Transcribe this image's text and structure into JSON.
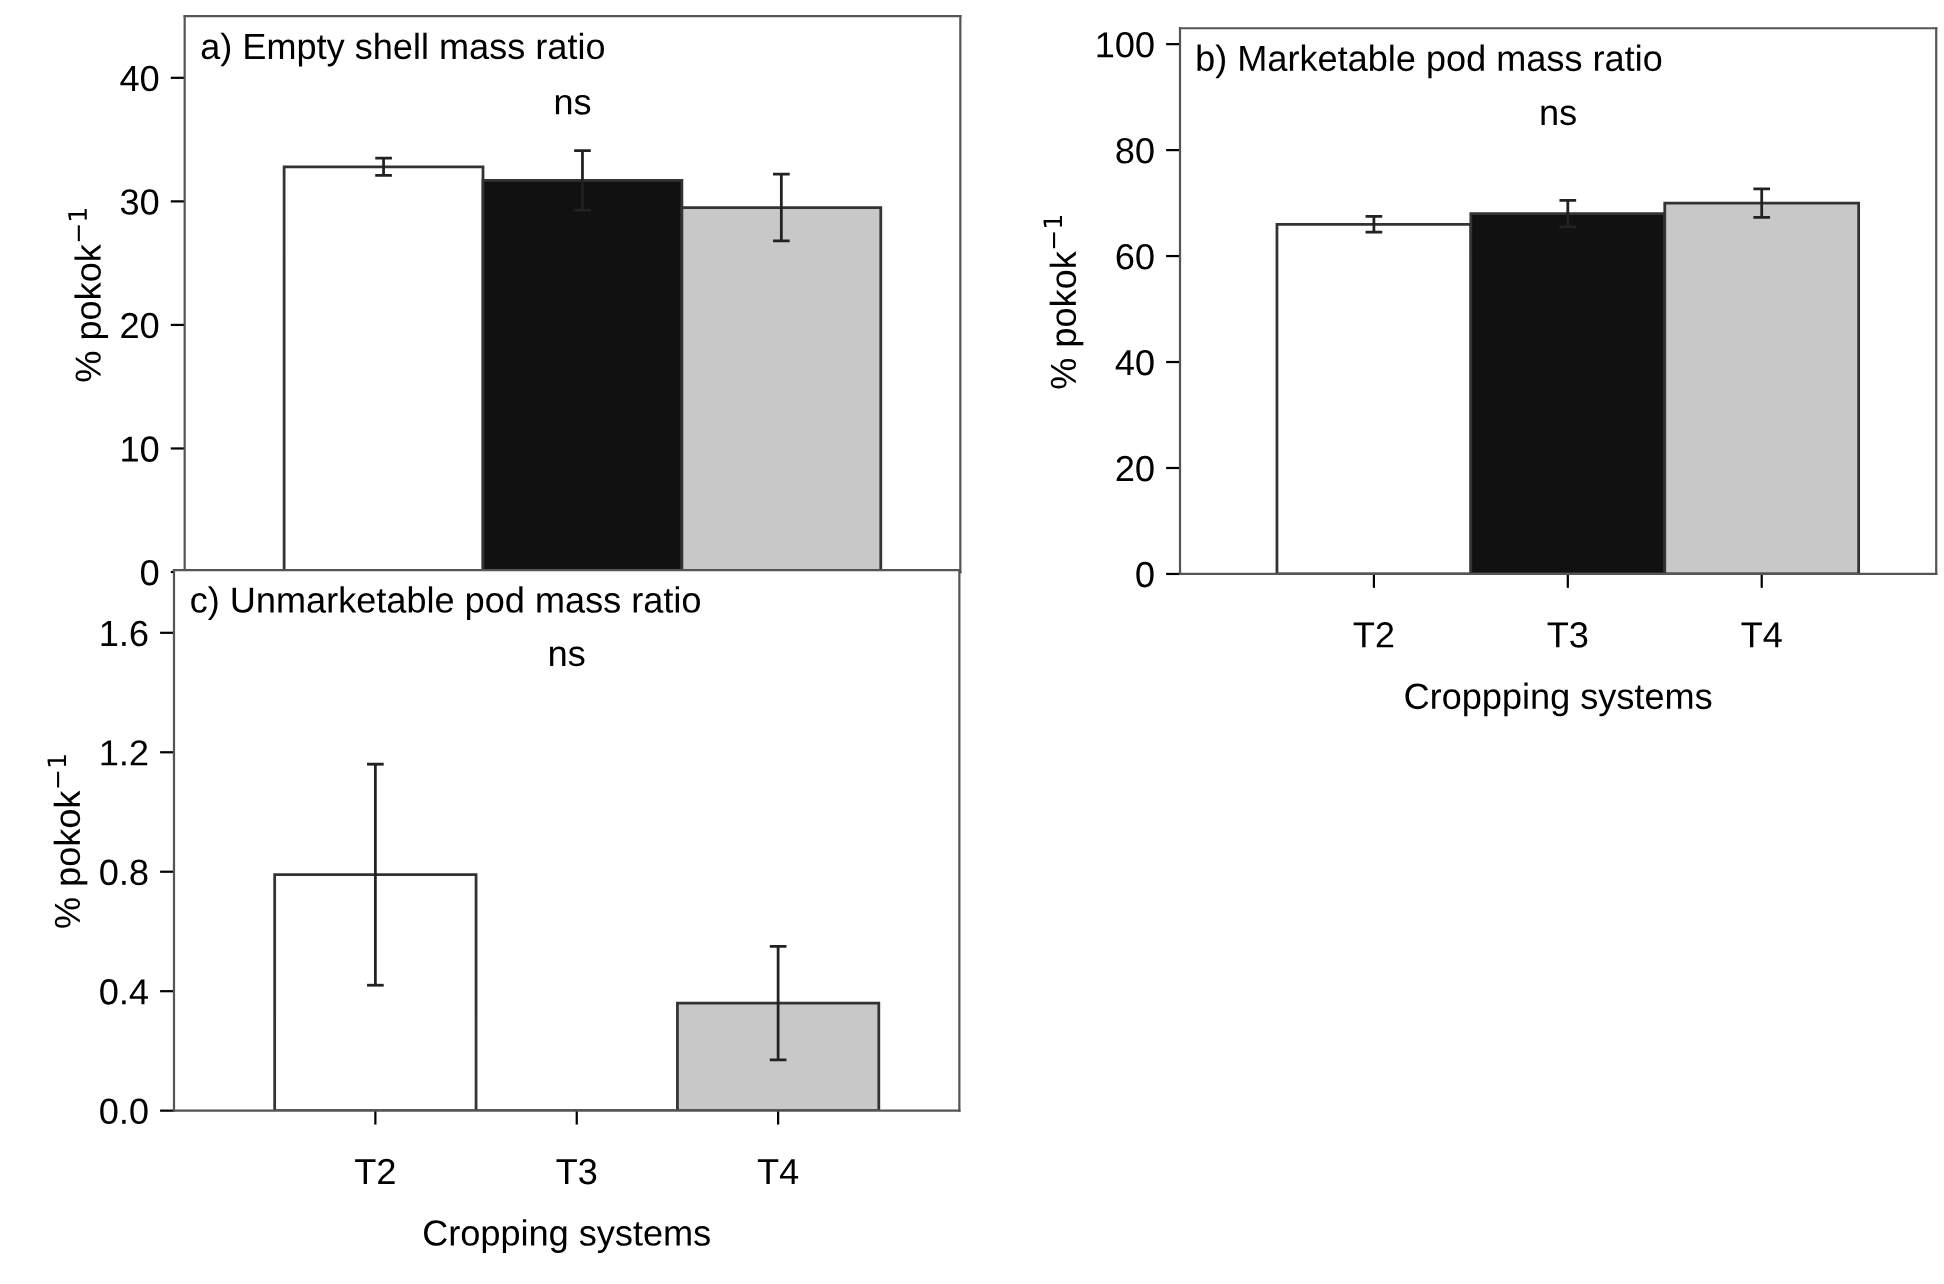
{
  "chart_data": [
    {
      "type": "bar",
      "title": "a) Empty shell mass ratio",
      "ylabel": "% pokok$^{−1}$",
      "categories": [
        null,
        null,
        null
      ],
      "values": [
        32.8,
        31.7,
        29.5
      ],
      "errors": [
        0.7,
        2.4,
        2.7
      ],
      "colors": [
        "#ffffff",
        "#111111",
        "#c8c8c8"
      ],
      "ylim": [
        0,
        45
      ],
      "yticks": [
        0,
        10,
        20,
        30,
        40
      ],
      "tick_labels": "y",
      "annotations": [
        "ns"
      ]
    },
    {
      "type": "bar",
      "title": "b) Marketable pod mass ratio",
      "xlabel": "Croppping systems",
      "ylabel": "% pokok$^{−1}$",
      "categories": [
        "T2",
        "T3",
        "T4"
      ],
      "values": [
        66,
        68,
        70
      ],
      "errors": [
        1.5,
        2.5,
        2.7
      ],
      "colors": [
        "#ffffff",
        "#111111",
        "#c8c8c8"
      ],
      "ylim": [
        0,
        103
      ],
      "yticks": [
        0,
        20,
        40,
        60,
        80,
        100
      ],
      "annotations": [
        "ns"
      ]
    },
    {
      "type": "bar",
      "title": "c) Unmarketable pod mass ratio",
      "xlabel": "Cropping systems",
      "ylabel": "% pokok$^{−1}$",
      "categories": [
        "T2",
        "T3",
        "T4"
      ],
      "values": [
        0.79,
        0,
        0.36
      ],
      "errors": [
        0.37,
        null,
        0.19
      ],
      "colors": [
        "#ffffff",
        "#111111",
        "#c8c8c8"
      ],
      "ylim": [
        0,
        1.81
      ],
      "yticks": [
        {
          "value": 0,
          "label": "0.0"
        },
        {
          "value": 0.4,
          "label": "0.4"
        },
        {
          "value": 0.8,
          "label": "0.8"
        },
        {
          "value": 1.2,
          "label": "1.2"
        },
        {
          "value": 1.6,
          "label": "1.6"
        }
      ],
      "annotations": [
        "ns"
      ]
    }
  ]
}
